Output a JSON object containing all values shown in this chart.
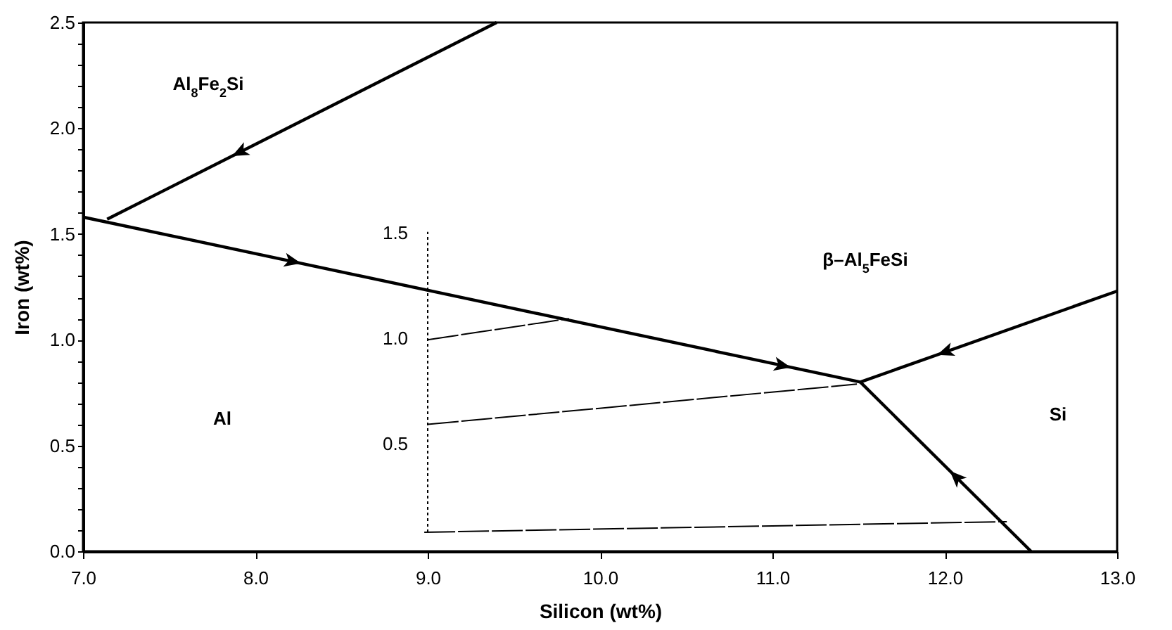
{
  "chart_data": {
    "type": "line",
    "xlabel": "Silicon (wt%)",
    "ylabel": "Iron (wt%)",
    "xlim": [
      7,
      13
    ],
    "ylim": [
      0,
      2.5
    ],
    "xticks": [
      {
        "value": 7,
        "label": "7.0"
      },
      {
        "value": 8,
        "label": "8.0"
      },
      {
        "value": 9,
        "label": "9.0"
      },
      {
        "value": 10,
        "label": "10.0"
      },
      {
        "value": 11,
        "label": "11.0"
      },
      {
        "value": 12,
        "label": "12.0"
      },
      {
        "value": 13,
        "label": "13.0"
      }
    ],
    "yticks": [
      {
        "value": 0,
        "label": "0.0"
      },
      {
        "value": 0.1,
        "label": null
      },
      {
        "value": 0.2,
        "label": null
      },
      {
        "value": 0.3,
        "label": null
      },
      {
        "value": 0.4,
        "label": null
      },
      {
        "value": 0.5,
        "label": "0.5"
      },
      {
        "value": 0.6,
        "label": null
      },
      {
        "value": 0.7,
        "label": null
      },
      {
        "value": 0.8,
        "label": null
      },
      {
        "value": 0.9,
        "label": null
      },
      {
        "value": 1,
        "label": "1.0"
      },
      {
        "value": 1.1,
        "label": null
      },
      {
        "value": 1.2,
        "label": null
      },
      {
        "value": 1.3,
        "label": null
      },
      {
        "value": 1.4,
        "label": null
      },
      {
        "value": 1.5,
        "label": "1.5"
      },
      {
        "value": 1.6,
        "label": null
      },
      {
        "value": 1.7,
        "label": null
      },
      {
        "value": 1.8,
        "label": null
      },
      {
        "value": 1.9,
        "label": null
      },
      {
        "value": 2,
        "label": "2.0"
      },
      {
        "value": 2.1,
        "label": null
      },
      {
        "value": 2.2,
        "label": null
      },
      {
        "value": 2.3,
        "label": null
      },
      {
        "value": 2.4,
        "label": null
      },
      {
        "value": 2.5,
        "label": "2.5"
      }
    ],
    "grid": false,
    "marker": "none",
    "series": [
      {
        "color": "#000000",
        "line_style": "solid",
        "x": [
          9.4,
          7.14
        ],
        "values": [
          2.5,
          1.57
        ]
      },
      {
        "color": "#000000",
        "line_style": "solid",
        "x": [
          7.0,
          11.51
        ],
        "values": [
          1.58,
          0.8
        ]
      },
      {
        "color": "#000000",
        "line_style": "solid",
        "x": [
          13.0,
          11.51
        ],
        "values": [
          1.23,
          0.8
        ]
      },
      {
        "color": "#000000",
        "line_style": "solid",
        "x": [
          12.5,
          11.51
        ],
        "values": [
          0,
          0.8
        ]
      },
      {
        "color": "#000000",
        "line_style": "dashed",
        "x": [
          8.98,
          12.36
        ],
        "values": [
          0.09,
          0.14
        ]
      },
      {
        "color": "#000000",
        "line_style": "dashed",
        "x": [
          9.0,
          11.49
        ],
        "values": [
          0.6,
          0.79
        ]
      },
      {
        "color": "#000000",
        "line_style": "dashed",
        "x": [
          9.0,
          9.82
        ],
        "values": [
          1.0,
          1.1
        ]
      },
      {
        "color": "#000000",
        "line_style": "dotted",
        "x": [
          9.0,
          9.0
        ],
        "values": [
          0.09,
          1.51
        ]
      }
    ],
    "annotations": [
      "Al$_{8}$Fe$_{2}$Si",
      "Al",
      "β–Al$_{5}$FeSi",
      "Si",
      "1.5",
      "1.0",
      "0.5"
    ]
  }
}
